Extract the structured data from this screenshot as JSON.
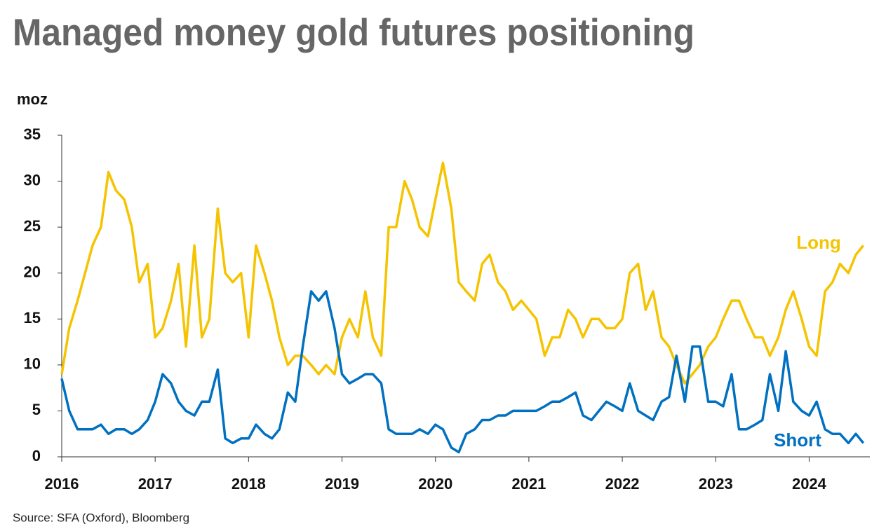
{
  "chart_data": {
    "type": "line",
    "title": "Managed money gold futures positioning",
    "y_label": "moz",
    "source": "Source: SFA (Oxford), Bloomberg",
    "x": [
      2016,
      2016.08,
      2016.17,
      2016.25,
      2016.33,
      2016.42,
      2016.5,
      2016.58,
      2016.67,
      2016.75,
      2016.83,
      2016.92,
      2017,
      2017.08,
      2017.17,
      2017.25,
      2017.33,
      2017.42,
      2017.5,
      2017.58,
      2017.67,
      2017.75,
      2017.83,
      2017.92,
      2018,
      2018.08,
      2018.17,
      2018.25,
      2018.33,
      2018.42,
      2018.5,
      2018.58,
      2018.67,
      2018.75,
      2018.83,
      2018.92,
      2019,
      2019.08,
      2019.17,
      2019.25,
      2019.33,
      2019.42,
      2019.5,
      2019.58,
      2019.67,
      2019.75,
      2019.83,
      2019.92,
      2020,
      2020.08,
      2020.17,
      2020.25,
      2020.33,
      2020.42,
      2020.5,
      2020.58,
      2020.67,
      2020.75,
      2020.83,
      2020.92,
      2021,
      2021.08,
      2021.17,
      2021.25,
      2021.33,
      2021.42,
      2021.5,
      2021.58,
      2021.67,
      2021.75,
      2021.83,
      2021.92,
      2022,
      2022.08,
      2022.17,
      2022.25,
      2022.33,
      2022.42,
      2022.5,
      2022.58,
      2022.67,
      2022.75,
      2022.83,
      2022.92,
      2023,
      2023.08,
      2023.17,
      2023.25,
      2023.33,
      2023.42,
      2023.5,
      2023.58,
      2023.67,
      2023.75,
      2023.83,
      2023.92,
      2024,
      2024.08,
      2024.17,
      2024.25,
      2024.33,
      2024.42,
      2024.5,
      2024.58
    ],
    "series": [
      {
        "name": "Long",
        "color": "#f5c400",
        "values": [
          9,
          14,
          17,
          20,
          23,
          25,
          31,
          29,
          28,
          25,
          19,
          21,
          13,
          14,
          17,
          21,
          12,
          23,
          13,
          15,
          27,
          20,
          19,
          20,
          13,
          23,
          20,
          17,
          13,
          10,
          11,
          11,
          10,
          9,
          10,
          9,
          13,
          15,
          13,
          18,
          13,
          11,
          25,
          25,
          30,
          28,
          25,
          24,
          28,
          32,
          27,
          19,
          18,
          17,
          21,
          22,
          19,
          18,
          16,
          17,
          16,
          15,
          11,
          13,
          13,
          16,
          15,
          13,
          15,
          15,
          14,
          14,
          15,
          20,
          21,
          16,
          18,
          13,
          12,
          10,
          8,
          9,
          10,
          12,
          13,
          15,
          17,
          17,
          15,
          13,
          13,
          11,
          13,
          16,
          18,
          15,
          12,
          11,
          18,
          19,
          21,
          20,
          22,
          23
        ]
      },
      {
        "name": "Short",
        "color": "#0070c0",
        "values": [
          8.5,
          5,
          3,
          3,
          3,
          3.5,
          2.5,
          3,
          3,
          2.5,
          3,
          4,
          6,
          9,
          8,
          6,
          5,
          4.5,
          6,
          6,
          9.5,
          2,
          1.5,
          2,
          2,
          3.5,
          2.5,
          2,
          3,
          7,
          6,
          12,
          18,
          17,
          18,
          14,
          9,
          8,
          8.5,
          9,
          9,
          8,
          3,
          2.5,
          2.5,
          2.5,
          3,
          2.5,
          3.5,
          3,
          1,
          0.5,
          2.5,
          3,
          4,
          4,
          4.5,
          4.5,
          5,
          5,
          5,
          5,
          5.5,
          6,
          6,
          6.5,
          7,
          4.5,
          4,
          5,
          6,
          5.5,
          5,
          8,
          5,
          4.5,
          4,
          6,
          6.5,
          11,
          6,
          12,
          12,
          6,
          6,
          5.5,
          9,
          3,
          3,
          3.5,
          4,
          9,
          5,
          11.5,
          6,
          5,
          4.5,
          6,
          3,
          2.5,
          2.5,
          1.5,
          2.5,
          1.5
        ]
      }
    ],
    "xlim": [
      2016,
      2024.65
    ],
    "xticks": [
      2016,
      2017,
      2018,
      2019,
      2020,
      2021,
      2022,
      2023,
      2024
    ],
    "ylim": [
      0,
      35
    ],
    "yticks": [
      0,
      5,
      10,
      15,
      20,
      25,
      30,
      35
    ]
  }
}
